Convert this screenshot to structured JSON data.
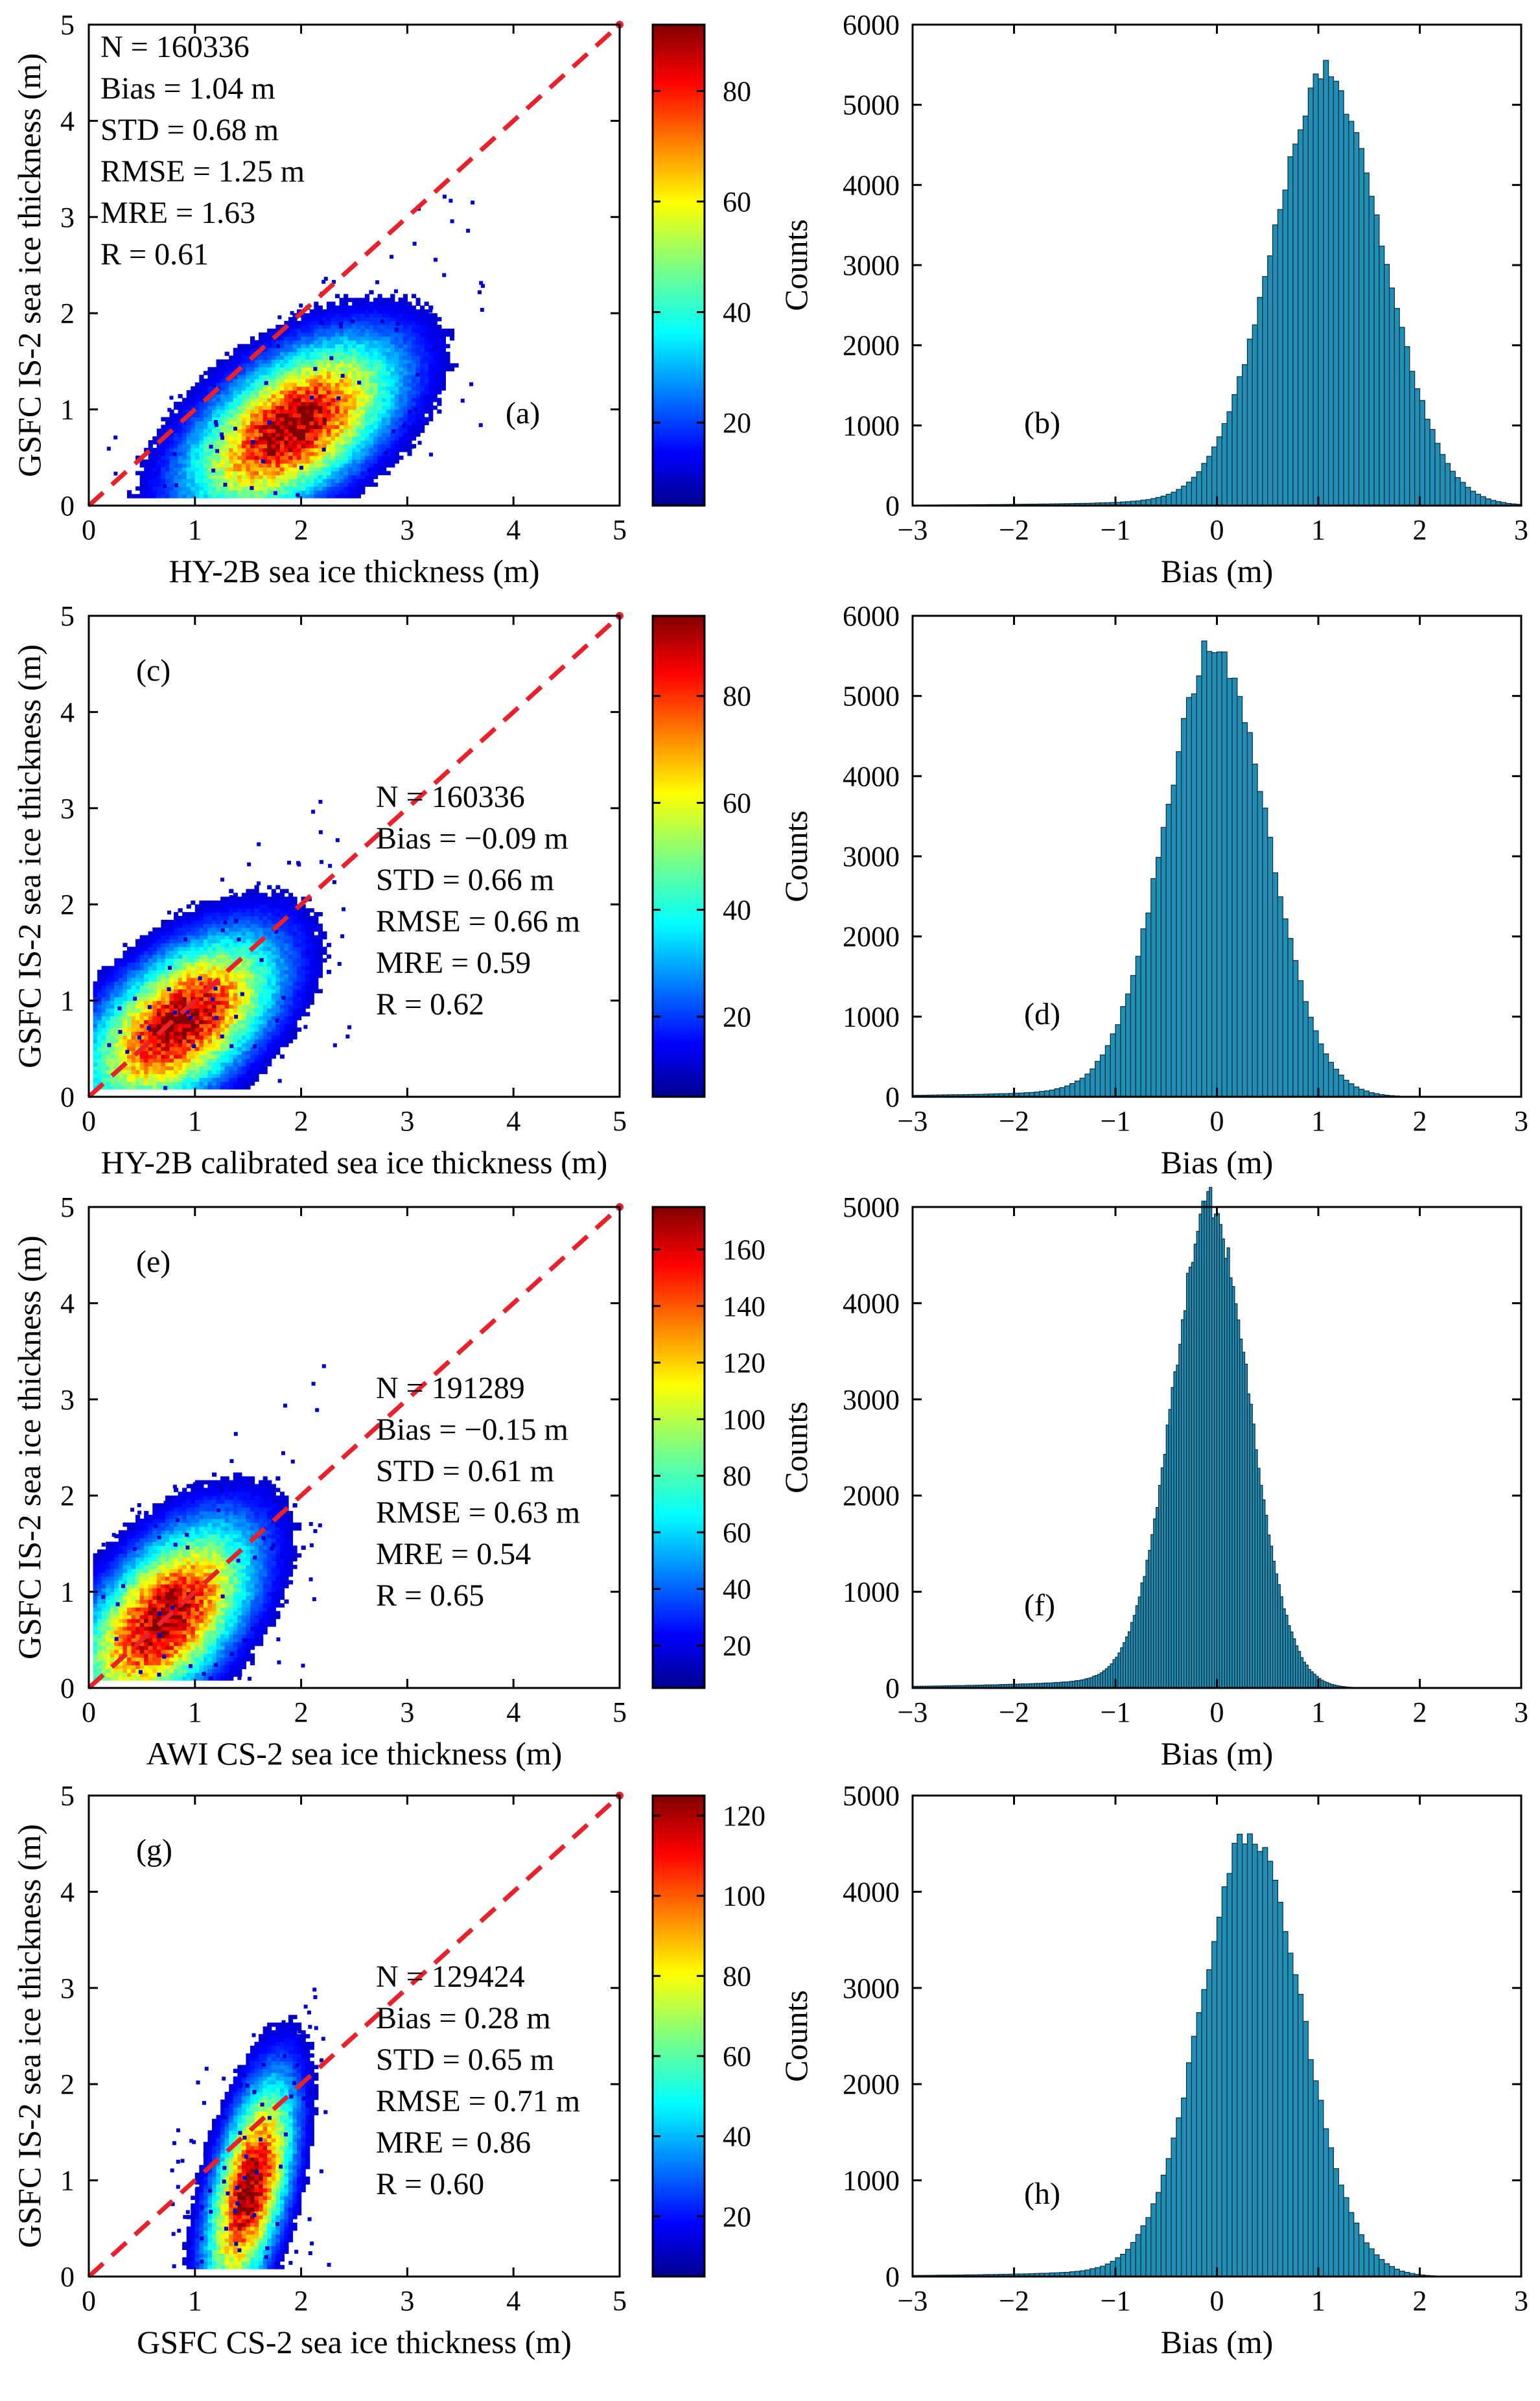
{
  "figure": {
    "rows": [
      {
        "scatter": {
          "label": "(a)",
          "xlabel": "HY-2B sea ice thickness (m)",
          "ylabel": "GSFC IS-2 sea ice thickness (m)",
          "stats": [
            "N = 160336",
            "Bias = 1.04 m",
            "STD = 0.68 m",
            "RMSE = 1.25 m",
            "MRE = 1.63",
            "R = 0.61"
          ]
        },
        "hist": {
          "label": "(b)",
          "xlabel": "Bias (m)",
          "ylabel": "Counts"
        }
      },
      {
        "scatter": {
          "label": "(c)",
          "xlabel": "HY-2B calibrated sea ice thickness (m)",
          "ylabel": "GSFC IS-2 sea ice thickness (m)",
          "stats": [
            "N = 160336",
            "Bias = −0.09 m",
            "STD = 0.66 m",
            "RMSE = 0.66 m",
            "MRE = 0.59",
            "R = 0.62"
          ]
        },
        "hist": {
          "label": "(d)",
          "xlabel": "Bias (m)",
          "ylabel": "Counts"
        }
      },
      {
        "scatter": {
          "label": "(e)",
          "xlabel": "AWI CS-2 sea ice thickness (m)",
          "ylabel": "GSFC IS-2 sea ice thickness (m)",
          "stats": [
            "N = 191289",
            "Bias = −0.15 m",
            "STD = 0.61 m",
            "RMSE = 0.63 m",
            "MRE = 0.54",
            "R = 0.65"
          ]
        },
        "hist": {
          "label": "(f)",
          "xlabel": "Bias (m)",
          "ylabel": "Counts"
        }
      },
      {
        "scatter": {
          "label": "(g)",
          "xlabel": "GSFC CS-2 sea ice thickness (m)",
          "ylabel": "GSFC IS-2 sea ice thickness (m)",
          "stats": [
            "N = 129424",
            "Bias = 0.28 m",
            "STD = 0.65 m",
            "RMSE = 0.71 m",
            "MRE = 0.86",
            "R = 0.60"
          ]
        },
        "hist": {
          "label": "(h)",
          "xlabel": "Bias (m)",
          "ylabel": "Counts"
        }
      }
    ]
  },
  "colors": {
    "hist_fill": "#1f8fb5",
    "hist_edge": "#0a2a3a",
    "one_to_one_line": "#e8212a",
    "axis": "#000000"
  },
  "chart_data": [
    {
      "type": "scatter",
      "panel": "(a)",
      "xlim": [
        0,
        5
      ],
      "ylim": [
        0,
        5
      ],
      "xticks": [
        0,
        1,
        2,
        3,
        4,
        5
      ],
      "yticks": [
        0,
        1,
        2,
        3,
        4,
        5
      ],
      "one_to_one_line": [
        [
          0,
          0
        ],
        [
          5,
          5
        ]
      ],
      "density_center": [
        1.9,
        0.8
      ],
      "density_spread": [
        0.6,
        0.55
      ],
      "colorbar": {
        "min": 5,
        "max": 92,
        "ticks": [
          20,
          40,
          60,
          80
        ],
        "colormap": "jet"
      }
    },
    {
      "type": "bar",
      "panel": "(b)",
      "xlim": [
        -3,
        3
      ],
      "ylim": [
        0,
        6000
      ],
      "xticks": [
        -3,
        -2,
        -1,
        0,
        1,
        2,
        3
      ],
      "yticks": [
        0,
        1000,
        2000,
        3000,
        4000,
        5000,
        6000
      ],
      "bin_width": 0.05,
      "peak_x": 1.1,
      "peak_count": 5250,
      "sigma": 0.55
    },
    {
      "type": "scatter",
      "panel": "(c)",
      "xlim": [
        0,
        5
      ],
      "ylim": [
        0,
        5
      ],
      "xticks": [
        0,
        1,
        2,
        3,
        4,
        5
      ],
      "yticks": [
        0,
        1,
        2,
        3,
        4,
        5
      ],
      "one_to_one_line": [
        [
          0,
          0
        ],
        [
          5,
          5
        ]
      ],
      "density_center": [
        0.85,
        0.75
      ],
      "density_spread": [
        0.55,
        0.55
      ],
      "colorbar": {
        "min": 5,
        "max": 95,
        "ticks": [
          20,
          40,
          60,
          80
        ],
        "colormap": "jet"
      }
    },
    {
      "type": "bar",
      "panel": "(d)",
      "xlim": [
        -3,
        3
      ],
      "ylim": [
        0,
        6000
      ],
      "xticks": [
        -3,
        -2,
        -1,
        0,
        1,
        2,
        3
      ],
      "yticks": [
        0,
        1000,
        2000,
        3000,
        4000,
        5000,
        6000
      ],
      "bin_width": 0.05,
      "peak_x": 0.0,
      "peak_count": 5500,
      "sigma": 0.5
    },
    {
      "type": "scatter",
      "panel": "(e)",
      "xlim": [
        0,
        5
      ],
      "ylim": [
        0,
        5
      ],
      "xticks": [
        0,
        1,
        2,
        3,
        4,
        5
      ],
      "yticks": [
        0,
        1,
        2,
        3,
        4,
        5
      ],
      "one_to_one_line": [
        [
          0,
          0
        ],
        [
          5,
          5
        ]
      ],
      "density_center": [
        0.7,
        0.7
      ],
      "density_spread": [
        0.5,
        0.6
      ],
      "colorbar": {
        "min": 5,
        "max": 175,
        "ticks": [
          20,
          40,
          60,
          80,
          100,
          120,
          140,
          160
        ],
        "colormap": "jet"
      }
    },
    {
      "type": "bar",
      "panel": "(f)",
      "xlim": [
        -3,
        3
      ],
      "ylim": [
        0,
        5000
      ],
      "xticks": [
        -3,
        -2,
        -1,
        0,
        1,
        2,
        3
      ],
      "yticks": [
        0,
        1000,
        2000,
        3000,
        4000,
        5000
      ],
      "bin_width": 0.025,
      "peak_x": -0.05,
      "peak_count": 4900,
      "sigma": 0.38
    },
    {
      "type": "scatter",
      "panel": "(g)",
      "xlim": [
        0,
        5
      ],
      "ylim": [
        0,
        5
      ],
      "xticks": [
        0,
        1,
        2,
        3,
        4,
        5
      ],
      "yticks": [
        0,
        1,
        2,
        3,
        4,
        5
      ],
      "one_to_one_line": [
        [
          0,
          0
        ],
        [
          5,
          5
        ]
      ],
      "density_center": [
        1.5,
        0.9
      ],
      "density_spread": [
        0.25,
        0.7
      ],
      "colorbar": {
        "min": 5,
        "max": 125,
        "ticks": [
          20,
          40,
          60,
          80,
          100,
          120
        ],
        "colormap": "jet"
      }
    },
    {
      "type": "bar",
      "panel": "(h)",
      "xlim": [
        -3,
        3
      ],
      "ylim": [
        0,
        5000
      ],
      "xticks": [
        -3,
        -2,
        -1,
        0,
        1,
        2,
        3
      ],
      "yticks": [
        0,
        1000,
        2000,
        3000,
        4000,
        5000
      ],
      "bin_width": 0.05,
      "peak_x": 0.35,
      "peak_count": 4500,
      "sigma": 0.5
    }
  ]
}
